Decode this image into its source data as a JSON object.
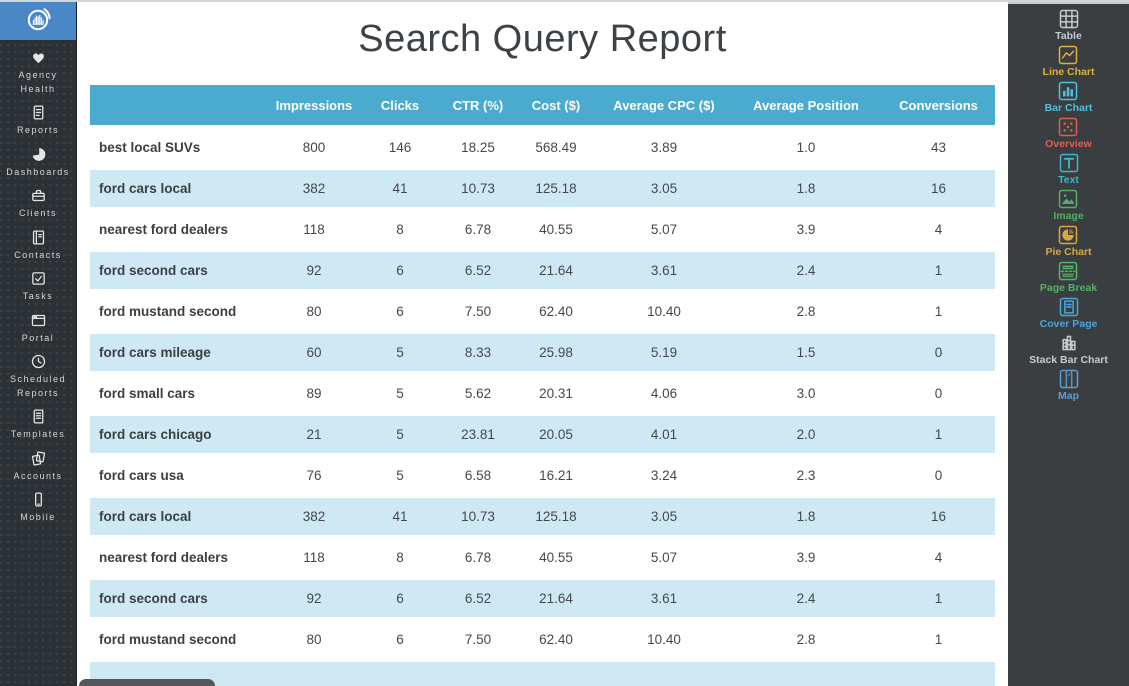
{
  "page_title": "Search Query Report",
  "left_sidebar": {
    "items": [
      {
        "label": "Agency Health",
        "icon": "heart-icon"
      },
      {
        "label": "Reports",
        "icon": "report-doc-icon"
      },
      {
        "label": "Dashboards",
        "icon": "pie-dashboard-icon"
      },
      {
        "label": "Clients",
        "icon": "briefcase-icon"
      },
      {
        "label": "Contacts",
        "icon": "address-book-icon"
      },
      {
        "label": "Tasks",
        "icon": "checkbox-icon"
      },
      {
        "label": "Portal",
        "icon": "browser-window-icon"
      },
      {
        "label": "Scheduled Reports",
        "icon": "clock-icon"
      },
      {
        "label": "Templates",
        "icon": "template-doc-icon"
      },
      {
        "label": "Accounts",
        "icon": "stacked-pages-icon"
      },
      {
        "label": "Mobile",
        "icon": "smartphone-icon"
      }
    ]
  },
  "right_sidebar": {
    "widgets": [
      {
        "label": "Table",
        "icon": "table-widget-icon",
        "color": "#c6c9cd"
      },
      {
        "label": "Line Chart",
        "icon": "line-chart-icon",
        "color": "#d9b23f"
      },
      {
        "label": "Bar Chart",
        "icon": "bar-chart-icon",
        "color": "#4fc0df"
      },
      {
        "label": "Overview",
        "icon": "overview-dots-icon",
        "color": "#d96052"
      },
      {
        "label": "Text",
        "icon": "text-widget-icon",
        "color": "#3fb5c6"
      },
      {
        "label": "Image",
        "icon": "image-widget-icon",
        "color": "#55ae67"
      },
      {
        "label": "Pie Chart",
        "icon": "pie-chart-icon",
        "color": "#d9a73f"
      },
      {
        "label": "Page Break",
        "icon": "page-break-icon",
        "color": "#55b268"
      },
      {
        "label": "Cover Page",
        "icon": "cover-page-icon",
        "color": "#46a8dc"
      },
      {
        "label": "Stack Bar Chart",
        "icon": "stack-bar-chart-icon",
        "color": "#c9cccf"
      },
      {
        "label": "Map",
        "icon": "map-icon",
        "color": "#5c9cd6"
      }
    ]
  },
  "table": {
    "columns": [
      "",
      "Impressions",
      "Clicks",
      "CTR (%)",
      "Cost ($)",
      "Average CPC ($)",
      "Average Position",
      "Conversions"
    ],
    "rows": [
      [
        "best local SUVs",
        "800",
        "146",
        "18.25",
        "568.49",
        "3.89",
        "1.0",
        "43"
      ],
      [
        "ford cars local",
        "382",
        "41",
        "10.73",
        "125.18",
        "3.05",
        "1.8",
        "16"
      ],
      [
        "nearest ford dealers",
        "118",
        "8",
        "6.78",
        "40.55",
        "5.07",
        "3.9",
        "4"
      ],
      [
        "ford second cars",
        "92",
        "6",
        "6.52",
        "21.64",
        "3.61",
        "2.4",
        "1"
      ],
      [
        "ford mustand second",
        "80",
        "6",
        "7.50",
        "62.40",
        "10.40",
        "2.8",
        "1"
      ],
      [
        "ford cars mileage",
        "60",
        "5",
        "8.33",
        "25.98",
        "5.19",
        "1.5",
        "0"
      ],
      [
        "ford small cars",
        "89",
        "5",
        "5.62",
        "20.31",
        "4.06",
        "3.0",
        "0"
      ],
      [
        "ford cars chicago",
        "21",
        "5",
        "23.81",
        "20.05",
        "4.01",
        "2.0",
        "1"
      ],
      [
        "ford cars usa",
        "76",
        "5",
        "6.58",
        "16.21",
        "3.24",
        "2.3",
        "0"
      ],
      [
        "ford cars local",
        "382",
        "41",
        "10.73",
        "125.18",
        "3.05",
        "1.8",
        "16"
      ],
      [
        "nearest ford dealers",
        "118",
        "8",
        "6.78",
        "40.55",
        "5.07",
        "3.9",
        "4"
      ],
      [
        "ford second cars",
        "92",
        "6",
        "6.52",
        "21.64",
        "3.61",
        "2.4",
        "1"
      ],
      [
        "ford mustand second",
        "80",
        "6",
        "7.50",
        "62.40",
        "10.40",
        "2.8",
        "1"
      ]
    ]
  },
  "colors": {
    "table_header_blue": "#4aabce",
    "table_row_blue": "#cee9f4",
    "logo_blue": "#4a87c6",
    "left_sidebar_bg": "#2c3136",
    "right_sidebar_bg": "#3b3e41"
  }
}
